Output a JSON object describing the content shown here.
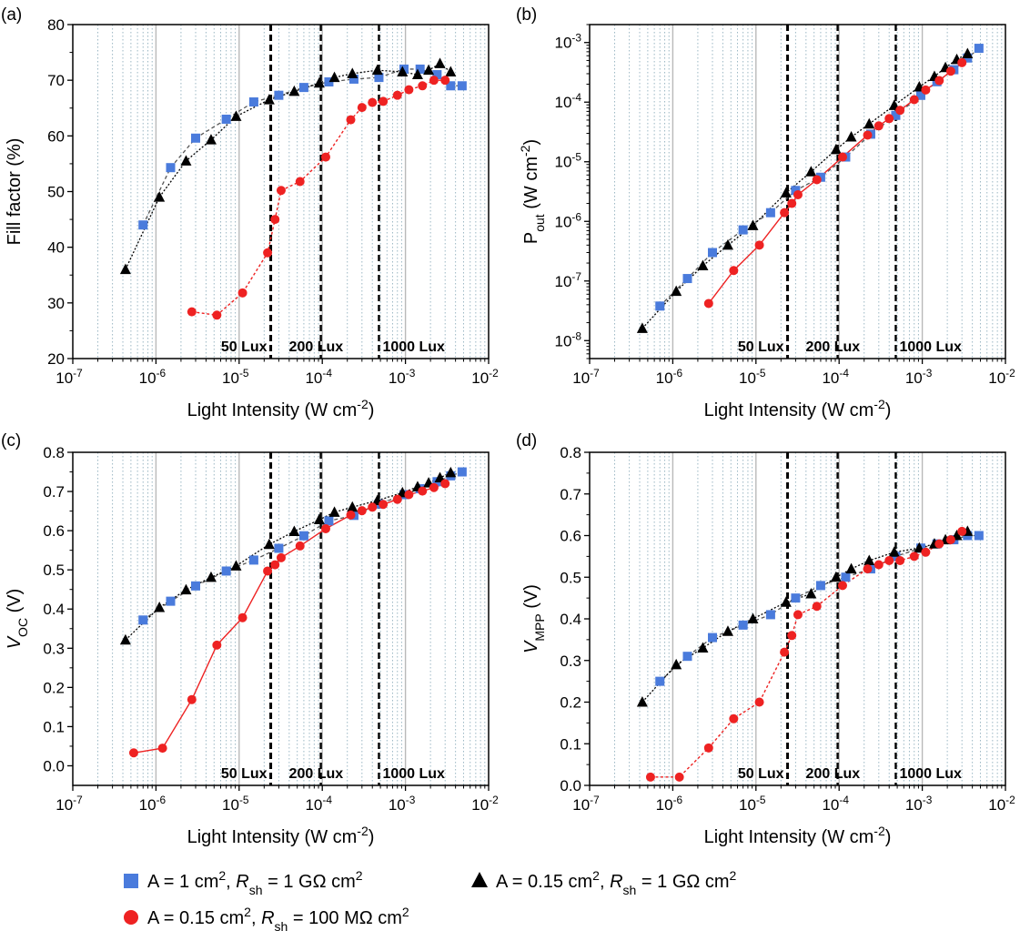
{
  "legend": [
    {
      "id": "blue",
      "text": "A = 1 cm², R_sh = 1 GΩ cm²",
      "marker": "square",
      "color": "#4a7bdc",
      "line": "#555555",
      "line_style": "dashed"
    },
    {
      "id": "black",
      "text": "A = 0.15 cm², R_sh = 1 GΩ cm²",
      "marker": "triangle",
      "color": "#000000",
      "line": "#000000",
      "line_style": "dotted"
    },
    {
      "id": "red",
      "text": "A = 0.15 cm², R_sh = 100 MΩ cm²",
      "marker": "circle",
      "color": "#ee2222",
      "line": "#ee2222",
      "line_style": "solid-or-dotted"
    }
  ],
  "chart_data": [
    {
      "panel": "(a)",
      "type": "line",
      "x_scale": "log",
      "xlim": [
        1e-07,
        0.01
      ],
      "xlabel": "Light Intensity (W cm⁻²)",
      "ylabel": "Fill factor (%)",
      "ylim": [
        20,
        80
      ],
      "y_scale": "linear",
      "y_ticks": [
        20,
        30,
        40,
        50,
        60,
        70,
        80
      ],
      "vlines": [
        2.4e-05,
        9.6e-05,
        0.00048
      ],
      "lux_labels": [
        "50 Lux",
        "200 Lux",
        "1000 Lux"
      ],
      "grid": true,
      "red_line_style": "dotted",
      "series": [
        {
          "id": "blue",
          "x": [
            7e-07,
            1.5e-06,
            3e-06,
            7e-06,
            1.5e-05,
            3e-05,
            6e-05,
            0.00012,
            0.00024,
            0.00048,
            0.00096,
            0.0015,
            0.0024,
            0.0035,
            0.0048
          ],
          "y": [
            44,
            54.3,
            59.6,
            63,
            66.1,
            67.3,
            68.7,
            69.7,
            70.2,
            70.5,
            72,
            72,
            71,
            69,
            69
          ]
        },
        {
          "id": "black",
          "x": [
            4.3e-07,
            1.1e-06,
            2.3e-06,
            4.6e-06,
            9.2e-06,
            2.3e-05,
            4.6e-05,
            9.2e-05,
            0.00014,
            0.00023,
            0.00046,
            0.00092,
            0.0014,
            0.0019,
            0.0026,
            0.0035
          ],
          "y": [
            36,
            49,
            55.5,
            59.3,
            63.5,
            66.5,
            68,
            69.5,
            70.5,
            71.2,
            71.8,
            71.5,
            71,
            71.8,
            73,
            71.5
          ]
        },
        {
          "id": "red",
          "x": [
            2.7e-06,
            5.4e-06,
            1.1e-05,
            2.2e-05,
            2.7e-05,
            3.2e-05,
            5.4e-05,
            0.00011,
            0.00022,
            0.0003,
            0.0004,
            0.00054,
            0.0008,
            0.0011,
            0.0016,
            0.0022,
            0.003
          ],
          "y": [
            28.4,
            27.8,
            31.8,
            39,
            45,
            50.2,
            51.8,
            56.2,
            62.9,
            65.1,
            66,
            66.2,
            67.3,
            68.3,
            69,
            70,
            70
          ]
        }
      ]
    },
    {
      "panel": "(b)",
      "type": "line",
      "x_scale": "log",
      "xlim": [
        1e-07,
        0.01
      ],
      "xlabel": "Light Intensity (W cm⁻²)",
      "ylabel": "P_out (W cm⁻²)",
      "ylim": [
        5e-09,
        0.002
      ],
      "y_scale": "log",
      "y_ticks": [
        1e-08,
        1e-07,
        1e-06,
        1e-05,
        0.0001,
        0.001
      ],
      "vlines": [
        2.4e-05,
        9.6e-05,
        0.00048
      ],
      "lux_labels": [
        "50 Lux",
        "200 Lux",
        "1000 Lux"
      ],
      "grid": true,
      "red_line_style": "solid",
      "series": [
        {
          "id": "blue",
          "x": [
            7e-07,
            1.5e-06,
            3e-06,
            7e-06,
            1.5e-05,
            3e-05,
            6e-05,
            0.00012,
            0.00024,
            0.00048,
            0.00096,
            0.0015,
            0.0024,
            0.0035,
            0.0048
          ],
          "y": [
            3.8e-08,
            1.1e-07,
            3e-07,
            7.2e-07,
            1.4e-06,
            3.3e-06,
            5.5e-06,
            1.2e-05,
            2.9e-05,
            6e-05,
            0.00013,
            0.00022,
            0.00035,
            0.00055,
            0.0008
          ]
        },
        {
          "id": "black",
          "x": [
            4.3e-07,
            1.1e-06,
            2.3e-06,
            4.6e-06,
            9.2e-06,
            2.3e-05,
            4.6e-05,
            9.2e-05,
            0.00014,
            0.00023,
            0.00046,
            0.00092,
            0.0014,
            0.0019,
            0.0026,
            0.0035
          ],
          "y": [
            1.6e-08,
            6.7e-08,
            1.8e-07,
            4e-07,
            8.5e-07,
            3e-06,
            6.8e-06,
            1.6e-05,
            2.6e-05,
            4.3e-05,
            8.8e-05,
            0.00018,
            0.00027,
            0.00038,
            0.00052,
            0.00065
          ]
        },
        {
          "id": "red",
          "x": [
            2.7e-06,
            5.4e-06,
            1.1e-05,
            2.2e-05,
            2.7e-05,
            3.2e-05,
            5.4e-05,
            0.00011,
            0.00022,
            0.0003,
            0.0004,
            0.00054,
            0.0008,
            0.0011,
            0.0016,
            0.0022,
            0.003
          ],
          "y": [
            4.2e-08,
            1.5e-07,
            4e-07,
            1.4e-06,
            2e-06,
            2.8e-06,
            5e-06,
            1.2e-05,
            2.8e-05,
            4e-05,
            5.3e-05,
            7.3e-05,
            0.00011,
            0.00016,
            0.00023,
            0.00033,
            0.00046
          ]
        }
      ]
    },
    {
      "panel": "(c)",
      "type": "line",
      "x_scale": "log",
      "xlim": [
        1e-07,
        0.01
      ],
      "xlabel": "Light Intensity (W cm⁻²)",
      "ylabel": "V_OC (V)",
      "ylim": [
        -0.05,
        0.8
      ],
      "y_scale": "linear",
      "y_ticks": [
        0.0,
        0.1,
        0.2,
        0.3,
        0.4,
        0.5,
        0.6,
        0.7,
        0.8
      ],
      "vlines": [
        2.4e-05,
        9.6e-05,
        0.00048
      ],
      "lux_labels": [
        "50 Lux",
        "200 Lux",
        "1000 Lux"
      ],
      "grid": true,
      "red_line_style": "solid",
      "series": [
        {
          "id": "blue",
          "x": [
            7e-07,
            1.5e-06,
            3e-06,
            7e-06,
            1.5e-05,
            3e-05,
            6e-05,
            0.00012,
            0.00024,
            0.00048,
            0.00096,
            0.0015,
            0.0024,
            0.0035,
            0.0048
          ],
          "y": [
            0.372,
            0.42,
            0.459,
            0.497,
            0.525,
            0.555,
            0.587,
            0.625,
            0.639,
            0.668,
            0.692,
            0.707,
            0.725,
            0.74,
            0.75
          ]
        },
        {
          "id": "black",
          "x": [
            4.3e-07,
            1.1e-06,
            2.3e-06,
            4.6e-06,
            9.2e-06,
            2.3e-05,
            4.6e-05,
            9.2e-05,
            0.00014,
            0.00023,
            0.00046,
            0.00092,
            0.0014,
            0.0019,
            0.0026,
            0.0035
          ],
          "y": [
            0.321,
            0.404,
            0.449,
            0.481,
            0.51,
            0.565,
            0.598,
            0.628,
            0.647,
            0.66,
            0.677,
            0.697,
            0.712,
            0.722,
            0.735,
            0.748
          ]
        },
        {
          "id": "red",
          "x": [
            5.4e-07,
            1.2e-06,
            2.7e-06,
            5.4e-06,
            1.1e-05,
            2.2e-05,
            2.7e-05,
            3.2e-05,
            5.4e-05,
            0.00011,
            0.00022,
            0.0003,
            0.0004,
            0.00054,
            0.0008,
            0.0011,
            0.0016,
            0.0022,
            0.003
          ],
          "y": [
            0.033,
            0.045,
            0.169,
            0.308,
            0.378,
            0.497,
            0.513,
            0.531,
            0.561,
            0.605,
            0.64,
            0.651,
            0.66,
            0.667,
            0.68,
            0.692,
            0.701,
            0.71,
            0.72
          ]
        }
      ]
    },
    {
      "panel": "(d)",
      "type": "line",
      "x_scale": "log",
      "xlim": [
        1e-07,
        0.01
      ],
      "xlabel": "Light Intensity (W cm⁻²)",
      "ylabel": "V_MPP (V)",
      "ylim": [
        0.0,
        0.8
      ],
      "y_scale": "linear",
      "y_ticks": [
        0.0,
        0.1,
        0.2,
        0.3,
        0.4,
        0.5,
        0.6,
        0.7,
        0.8
      ],
      "vlines": [
        2.4e-05,
        9.6e-05,
        0.00048
      ],
      "lux_labels": [
        "50 Lux",
        "200 Lux",
        "1000 Lux"
      ],
      "grid": true,
      "red_line_style": "dotted",
      "series": [
        {
          "id": "blue",
          "x": [
            7e-07,
            1.5e-06,
            3e-06,
            7e-06,
            1.5e-05,
            3e-05,
            6e-05,
            0.00012,
            0.00024,
            0.00048,
            0.00096,
            0.0015,
            0.0024,
            0.0035,
            0.0048
          ],
          "y": [
            0.25,
            0.31,
            0.355,
            0.385,
            0.41,
            0.45,
            0.48,
            0.5,
            0.52,
            0.55,
            0.57,
            0.58,
            0.59,
            0.6,
            0.6
          ]
        },
        {
          "id": "black",
          "x": [
            4.3e-07,
            1.1e-06,
            2.3e-06,
            4.6e-06,
            9.2e-06,
            2.3e-05,
            4.6e-05,
            9.2e-05,
            0.00014,
            0.00023,
            0.00046,
            0.00092,
            0.0014,
            0.0019,
            0.0026,
            0.0035
          ],
          "y": [
            0.2,
            0.29,
            0.33,
            0.37,
            0.4,
            0.44,
            0.46,
            0.5,
            0.52,
            0.54,
            0.56,
            0.57,
            0.58,
            0.59,
            0.6,
            0.61
          ]
        },
        {
          "id": "red",
          "x": [
            5.4e-07,
            1.2e-06,
            2.7e-06,
            5.4e-06,
            1.1e-05,
            2.2e-05,
            2.7e-05,
            3.2e-05,
            5.4e-05,
            0.00011,
            0.00022,
            0.0003,
            0.0004,
            0.00054,
            0.0008,
            0.0011,
            0.0016,
            0.0022,
            0.003
          ],
          "y": [
            0.02,
            0.02,
            0.09,
            0.16,
            0.2,
            0.32,
            0.36,
            0.41,
            0.43,
            0.48,
            0.52,
            0.53,
            0.54,
            0.54,
            0.55,
            0.56,
            0.58,
            0.59,
            0.61
          ]
        }
      ]
    }
  ]
}
